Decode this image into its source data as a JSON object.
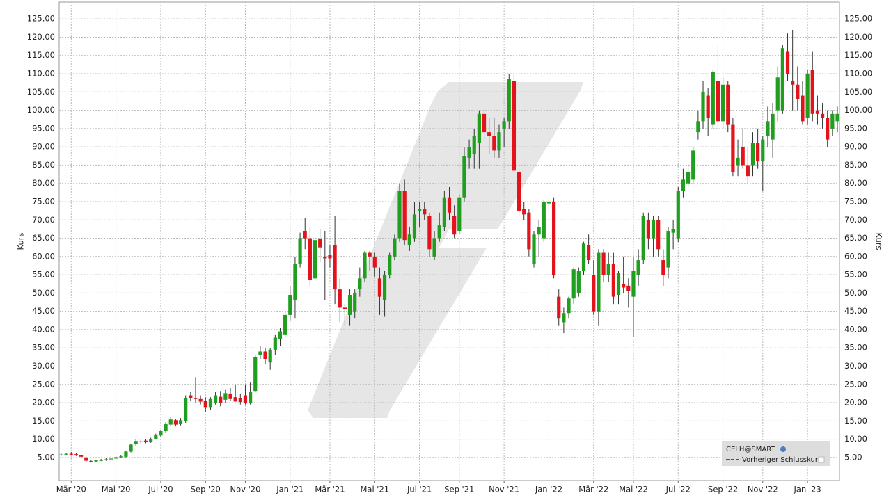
{
  "chart_data": {
    "type": "candlestick",
    "y_label": "Kurs",
    "up_color": "#1f9e1f",
    "down_color": "#e3121b",
    "grid": true,
    "legend_position": "lower right",
    "legend": {
      "title": "CELH@SMART",
      "item": "Vorheriger Schlusskurs"
    },
    "ylim": [
      -1.3,
      129.6
    ],
    "yticks": [
      {
        "value": 5,
        "label": "5.00"
      },
      {
        "value": 10,
        "label": "10.00"
      },
      {
        "value": 15,
        "label": "15.00"
      },
      {
        "value": 20,
        "label": "20.00"
      },
      {
        "value": 25,
        "label": "25.00"
      },
      {
        "value": 30,
        "label": "30.00"
      },
      {
        "value": 35,
        "label": "35.00"
      },
      {
        "value": 40,
        "label": "40.00"
      },
      {
        "value": 45,
        "label": "45.00"
      },
      {
        "value": 50,
        "label": "50.00"
      },
      {
        "value": 55,
        "label": "55.00"
      },
      {
        "value": 60,
        "label": "60.00"
      },
      {
        "value": 65,
        "label": "65.00"
      },
      {
        "value": 70,
        "label": "70.00"
      },
      {
        "value": 75,
        "label": "75.00"
      },
      {
        "value": 80,
        "label": "80.00"
      },
      {
        "value": 85,
        "label": "85.00"
      },
      {
        "value": 90,
        "label": "90.00"
      },
      {
        "value": 95,
        "label": "95.00"
      },
      {
        "value": 100,
        "label": "100.00"
      },
      {
        "value": 105,
        "label": "105.00"
      },
      {
        "value": 110,
        "label": "110.00"
      },
      {
        "value": 115,
        "label": "115.00"
      },
      {
        "value": 120,
        "label": "120.00"
      },
      {
        "value": 125,
        "label": "125.00"
      }
    ],
    "categories": [
      null,
      null,
      "Mär '20",
      null,
      null,
      null,
      null,
      null,
      null,
      null,
      null,
      "Mai '20",
      null,
      null,
      null,
      null,
      null,
      null,
      null,
      null,
      "Jul '20",
      null,
      null,
      null,
      null,
      null,
      null,
      null,
      null,
      "Sep '20",
      null,
      null,
      null,
      null,
      null,
      null,
      null,
      "Nov '20",
      null,
      null,
      null,
      null,
      null,
      null,
      null,
      null,
      "Jan '21",
      null,
      null,
      null,
      null,
      null,
      null,
      null,
      "Mär '21",
      null,
      null,
      null,
      null,
      null,
      null,
      null,
      null,
      "Mai '21",
      null,
      null,
      null,
      null,
      null,
      null,
      null,
      null,
      "Jul '21",
      null,
      null,
      null,
      null,
      null,
      null,
      null,
      "Sep '21",
      null,
      null,
      null,
      null,
      null,
      null,
      null,
      null,
      "Nov '21",
      null,
      null,
      null,
      null,
      null,
      null,
      null,
      null,
      "Jan '22",
      null,
      null,
      null,
      null,
      null,
      null,
      null,
      null,
      "Mär '22",
      null,
      null,
      null,
      null,
      null,
      null,
      null,
      "Mai '22",
      null,
      null,
      null,
      null,
      null,
      null,
      null,
      null,
      "Jul '22",
      null,
      null,
      null,
      null,
      null,
      null,
      null,
      null,
      "Sep '22",
      null,
      null,
      null,
      null,
      null,
      null,
      null,
      "Nov '22",
      null,
      null,
      null,
      null,
      null,
      null,
      null,
      null,
      "Jan '23",
      null,
      null,
      null,
      null,
      null,
      null
    ],
    "ohlc": [
      [
        5.7,
        6.0,
        5.5,
        5.8
      ],
      [
        5.8,
        6.3,
        5.6,
        6.0
      ],
      [
        6.0,
        6.5,
        5.7,
        5.9
      ],
      [
        5.9,
        6.2,
        5.4,
        5.6
      ],
      [
        5.6,
        5.8,
        4.9,
        5.2
      ],
      [
        5.0,
        5.2,
        3.8,
        4.1
      ],
      [
        4.0,
        4.3,
        3.6,
        3.9
      ],
      [
        3.9,
        4.4,
        3.7,
        4.2
      ],
      [
        4.2,
        4.6,
        4.0,
        4.3
      ],
      [
        4.3,
        4.8,
        4.1,
        4.5
      ],
      [
        4.5,
        5.0,
        4.3,
        4.7
      ],
      [
        4.7,
        5.3,
        4.5,
        5.1
      ],
      [
        5.1,
        5.6,
        4.9,
        5.3
      ],
      [
        5.2,
        6.9,
        5.0,
        6.6
      ],
      [
        6.6,
        8.8,
        6.4,
        8.5
      ],
      [
        8.6,
        10.0,
        8.2,
        9.5
      ],
      [
        9.4,
        9.9,
        8.7,
        9.2
      ],
      [
        9.6,
        10.1,
        8.9,
        9.3
      ],
      [
        9.2,
        10.4,
        9.0,
        10.1
      ],
      [
        10.1,
        11.5,
        9.9,
        11.2
      ],
      [
        11.0,
        12.5,
        10.6,
        12.2
      ],
      [
        12.2,
        14.6,
        11.8,
        14.1
      ],
      [
        14.0,
        16.0,
        13.6,
        15.4
      ],
      [
        15.2,
        15.6,
        13.5,
        14.0
      ],
      [
        14.1,
        15.8,
        13.8,
        15.2
      ],
      [
        15.0,
        22.0,
        14.5,
        21.2
      ],
      [
        22.0,
        23.0,
        20.5,
        21.2
      ],
      [
        21.3,
        27.0,
        20.0,
        21.0
      ],
      [
        21.0,
        22.0,
        19.5,
        20.3
      ],
      [
        20.5,
        21.5,
        17.5,
        18.8
      ],
      [
        18.8,
        21.5,
        18.0,
        21.0
      ],
      [
        20.0,
        23.0,
        19.5,
        22.0
      ],
      [
        21.6,
        23.2,
        19.0,
        20.0
      ],
      [
        20.8,
        23.5,
        20.0,
        22.6
      ],
      [
        22.5,
        24.0,
        20.5,
        21.0
      ],
      [
        21.5,
        25.0,
        20.5,
        20.3
      ],
      [
        21.3,
        22.5,
        19.5,
        20.2
      ],
      [
        22.0,
        25.0,
        19.5,
        20.0
      ],
      [
        20.0,
        25.5,
        19.5,
        23.0
      ],
      [
        23.2,
        33.0,
        22.8,
        32.5
      ],
      [
        33.0,
        35.5,
        32.0,
        34.0
      ],
      [
        34.0,
        35.0,
        30.5,
        32.0
      ],
      [
        31.0,
        35.0,
        29.0,
        34.5
      ],
      [
        34.5,
        38.5,
        33.0,
        37.8
      ],
      [
        37.5,
        40.5,
        35.5,
        39.5
      ],
      [
        38.5,
        45.0,
        38.0,
        44.0
      ],
      [
        44.0,
        52.0,
        42.5,
        49.5
      ],
      [
        48.0,
        60.0,
        43.0,
        58.0
      ],
      [
        58.0,
        66.5,
        57.0,
        65.0
      ],
      [
        67.0,
        70.5,
        62.0,
        65.0
      ],
      [
        65.0,
        68.0,
        52.0,
        53.5
      ],
      [
        54.0,
        66.0,
        53.0,
        64.5
      ],
      [
        64.8,
        67.5,
        58.5,
        62.5
      ],
      [
        60.0,
        67.0,
        48.0,
        59.5
      ],
      [
        60.5,
        63.0,
        57.0,
        59.5
      ],
      [
        63.0,
        71.0,
        47.0,
        51.0
      ],
      [
        51.0,
        54.0,
        42.0,
        46.0
      ],
      [
        46.0,
        47.0,
        41.0,
        45.5
      ],
      [
        44.0,
        51.0,
        41.0,
        49.5
      ],
      [
        45.0,
        51.0,
        43.0,
        50.0
      ],
      [
        51.0,
        57.0,
        49.0,
        54.0
      ],
      [
        54.0,
        61.5,
        53.0,
        61.0
      ],
      [
        61.0,
        61.5,
        56.0,
        60.0
      ],
      [
        60.0,
        61.0,
        54.5,
        57.0
      ],
      [
        54.0,
        57.0,
        44.0,
        49.0
      ],
      [
        48.0,
        56.0,
        43.5,
        55.0
      ],
      [
        55.0,
        61.0,
        54.0,
        60.5
      ],
      [
        60.0,
        66.0,
        59.0,
        65.0
      ],
      [
        65.0,
        80.0,
        64.0,
        78.0
      ],
      [
        78.0,
        81.0,
        63.0,
        64.5
      ],
      [
        63.0,
        68.0,
        61.5,
        66.0
      ],
      [
        65.0,
        75.0,
        64.0,
        71.5
      ],
      [
        72.5,
        75.0,
        68.0,
        73.0
      ],
      [
        73.0,
        75.0,
        70.0,
        71.5
      ],
      [
        71.0,
        72.0,
        60.0,
        62.0
      ],
      [
        60.0,
        67.0,
        59.0,
        65.0
      ],
      [
        65.0,
        72.0,
        64.0,
        68.5
      ],
      [
        68.0,
        78.0,
        67.0,
        76.0
      ],
      [
        76.0,
        79.0,
        70.0,
        72.0
      ],
      [
        71.0,
        74.0,
        65.0,
        66.0
      ],
      [
        67.0,
        77.0,
        66.0,
        76.0
      ],
      [
        76.0,
        90.0,
        75.0,
        87.5
      ],
      [
        87.0,
        92.0,
        84.0,
        90.0
      ],
      [
        88.0,
        95.0,
        84.0,
        93.0
      ],
      [
        91.0,
        100.0,
        84.0,
        99.0
      ],
      [
        99.0,
        100.5,
        92.0,
        94.0
      ],
      [
        94.0,
        98.0,
        88.0,
        93.0
      ],
      [
        93.0,
        98.0,
        87.0,
        89.0
      ],
      [
        89.0,
        96.0,
        87.0,
        94.0
      ],
      [
        95.0,
        98.0,
        90.0,
        97.0
      ],
      [
        97.0,
        110.0,
        95.0,
        108.5
      ],
      [
        108.0,
        110.0,
        83.0,
        83.5
      ],
      [
        83.0,
        84.0,
        71.0,
        72.5
      ],
      [
        73.0,
        75.0,
        70.0,
        71.5
      ],
      [
        72.0,
        73.0,
        60.0,
        62.0
      ],
      [
        58.0,
        67.0,
        57.0,
        66.0
      ],
      [
        66.0,
        70.0,
        60.0,
        68.0
      ],
      [
        65.0,
        75.5,
        64.0,
        75.0
      ],
      [
        74.5,
        76.0,
        72.0,
        74.8
      ],
      [
        75.0,
        76.0,
        54.0,
        55.0
      ],
      [
        49.0,
        51.0,
        41.0,
        43.0
      ],
      [
        42.0,
        46.0,
        39.0,
        44.5
      ],
      [
        44.5,
        49.0,
        43.0,
        48.5
      ],
      [
        48.5,
        57.0,
        47.0,
        56.5
      ],
      [
        50.0,
        57.0,
        49.0,
        56.0
      ],
      [
        56.0,
        64.0,
        55.0,
        63.5
      ],
      [
        63.0,
        66.0,
        58.0,
        59.0
      ],
      [
        55.0,
        59.0,
        44.0,
        45.0
      ],
      [
        45.0,
        62.0,
        41.0,
        61.0
      ],
      [
        61.0,
        62.0,
        53.0,
        55.0
      ],
      [
        55.0,
        61.0,
        53.0,
        58.0
      ],
      [
        58.0,
        61.0,
        47.0,
        49.0
      ],
      [
        49.5,
        56.0,
        47.0,
        55.5
      ],
      [
        52.5,
        60.0,
        50.0,
        51.5
      ],
      [
        52.0,
        54.0,
        46.0,
        50.5
      ],
      [
        49.0,
        60.0,
        38.0,
        56.0
      ],
      [
        55.0,
        62.0,
        52.0,
        59.0
      ],
      [
        59.0,
        72.0,
        58.0,
        71.0
      ],
      [
        70.0,
        72.0,
        62.0,
        65.0
      ],
      [
        65.0,
        71.0,
        60.0,
        70.0
      ],
      [
        70.0,
        71.0,
        60.0,
        62.0
      ],
      [
        59.0,
        62.0,
        52.0,
        55.0
      ],
      [
        57.0,
        68.0,
        54.0,
        67.0
      ],
      [
        66.5,
        70.0,
        62.0,
        67.5
      ],
      [
        65.0,
        79.0,
        64.0,
        78.0
      ],
      [
        78.0,
        84.0,
        76.0,
        81.0
      ],
      [
        80.0,
        85.0,
        79.0,
        83.0
      ],
      [
        81.0,
        90.0,
        80.0,
        89.0
      ],
      [
        94.0,
        100.0,
        92.0,
        97.0
      ],
      [
        97.0,
        108.0,
        95.0,
        105.0
      ],
      [
        104.0,
        106.0,
        93.0,
        98.0
      ],
      [
        96.0,
        111.0,
        95.0,
        110.5
      ],
      [
        108.0,
        118.0,
        95.0,
        97.0
      ],
      [
        97.0,
        109.0,
        95.0,
        107.0
      ],
      [
        107.0,
        108.0,
        94.0,
        96.0
      ],
      [
        96.0,
        98.0,
        82.0,
        83.0
      ],
      [
        85.0,
        92.0,
        82.0,
        87.0
      ],
      [
        90.0,
        95.0,
        84.0,
        85.0
      ],
      [
        85.0,
        90.0,
        80.0,
        82.0
      ],
      [
        85.0,
        94.0,
        82.0,
        91.0
      ],
      [
        91.0,
        95.0,
        84.0,
        86.0
      ],
      [
        86.0,
        93.0,
        78.0,
        92.0
      ],
      [
        93.0,
        101.0,
        90.0,
        97.0
      ],
      [
        92.0,
        102.0,
        87.0,
        99.0
      ],
      [
        100.0,
        112.0,
        97.0,
        109.0
      ],
      [
        100.0,
        118.0,
        99.0,
        117.0
      ],
      [
        116.0,
        121.0,
        108.0,
        110.0
      ],
      [
        108.0,
        122.0,
        100.0,
        107.0
      ],
      [
        107.0,
        112.0,
        100.0,
        103.0
      ],
      [
        104.0,
        108.0,
        96.0,
        97.0
      ],
      [
        98.0,
        111.0,
        96.0,
        110.0
      ],
      [
        111.0,
        116.0,
        97.0,
        99.0
      ],
      [
        100.0,
        104.0,
        96.0,
        99.0
      ],
      [
        99.0,
        102.0,
        95.0,
        98.0
      ],
      [
        98.0,
        100.0,
        90.0,
        92.0
      ],
      [
        95.0,
        100.0,
        93.0,
        99.0
      ],
      [
        97.0,
        101.0,
        94.0,
        99.0
      ]
    ]
  }
}
